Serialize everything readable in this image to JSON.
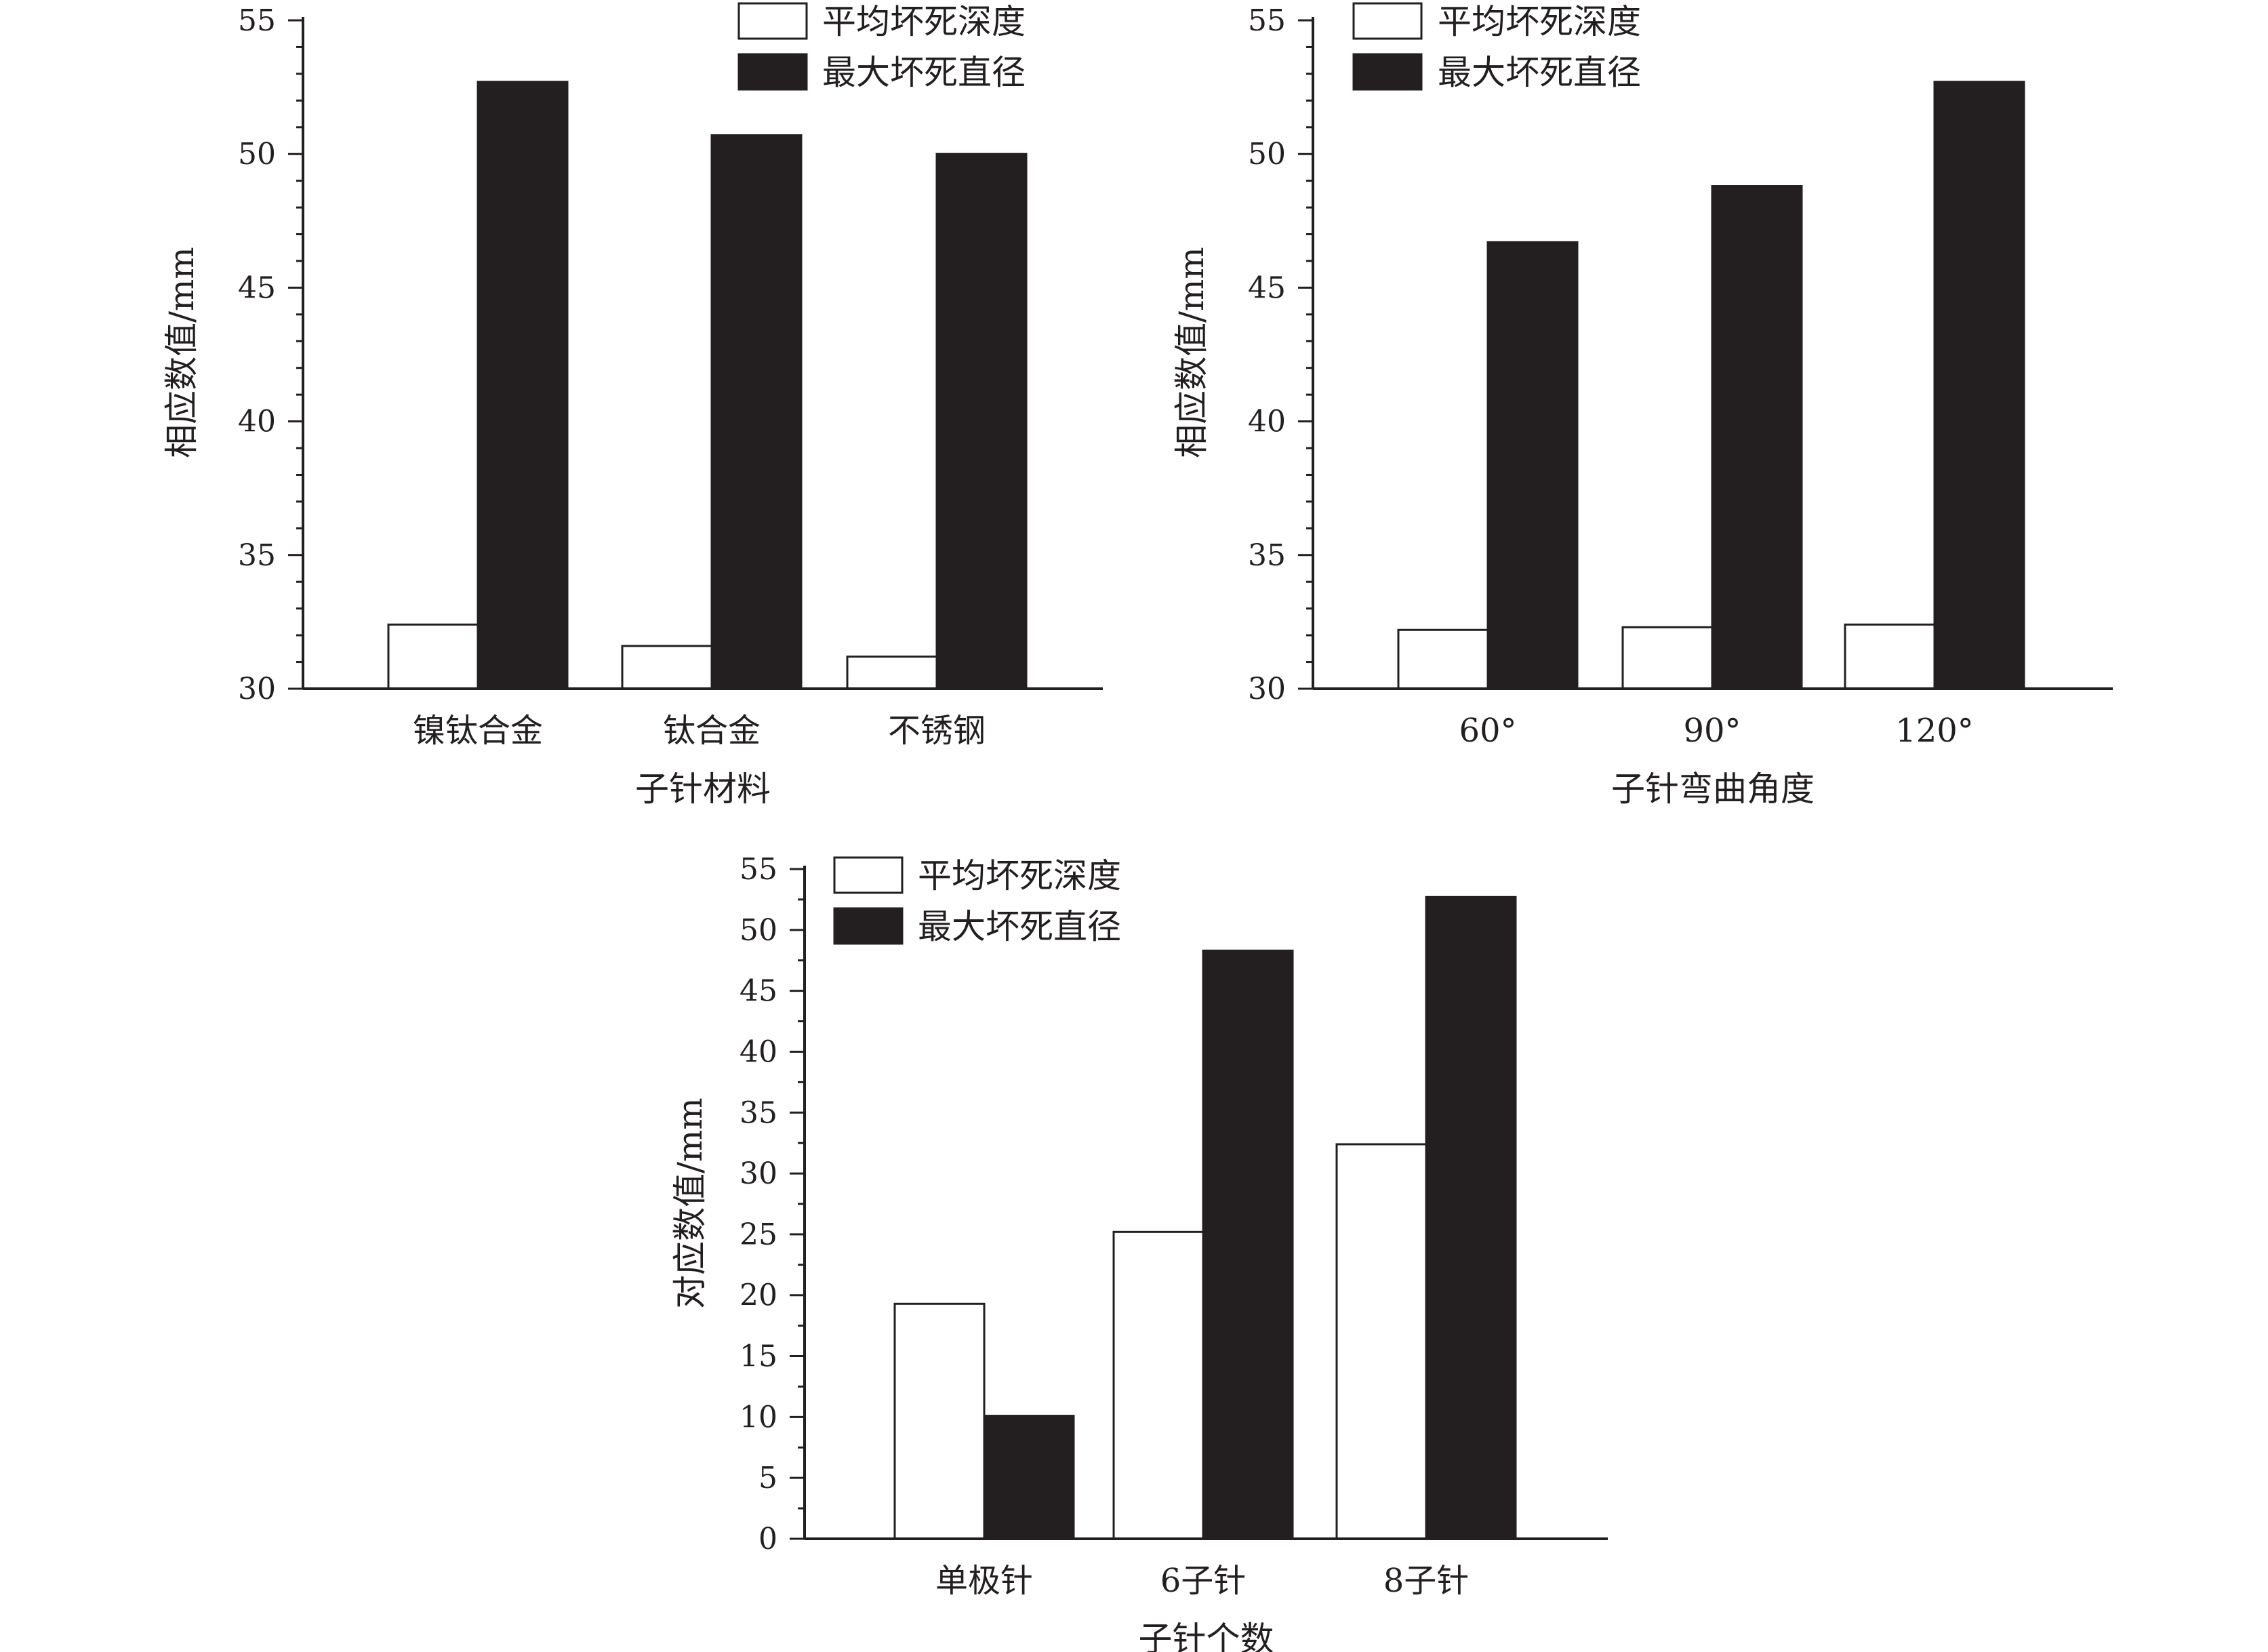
{
  "colors": {
    "bar_fill_series1": "#ffffff",
    "bar_fill_series2": "#231f20",
    "stroke": "#231f20"
  },
  "chart_data": [
    {
      "type": "bar",
      "categories": [
        "镍钛合金",
        "钛合金",
        "不锈钢"
      ],
      "series": [
        {
          "name": "平均坏死深度",
          "values": [
            32.4,
            31.6,
            31.2
          ]
        },
        {
          "name": "最大坏死直径",
          "values": [
            52.7,
            50.7,
            50.0
          ]
        }
      ],
      "xlabel": "子针材料",
      "ylabel": "相应数值/mm",
      "ylim": [
        30,
        55
      ],
      "yticks": [
        "30",
        "35",
        "40",
        "45",
        "50",
        "55"
      ],
      "legend": "top-center",
      "grid": false
    },
    {
      "type": "bar",
      "categories": [
        "60°",
        "90°",
        "120°"
      ],
      "series": [
        {
          "name": "平均坏死深度",
          "values": [
            32.2,
            32.3,
            32.4
          ]
        },
        {
          "name": "最大坏死直径",
          "values": [
            46.7,
            48.8,
            52.7
          ]
        }
      ],
      "xlabel": "子针弯曲角度",
      "ylabel": "相应数值/mm",
      "ylim": [
        30,
        55
      ],
      "yticks": [
        "30",
        "35",
        "40",
        "45",
        "50",
        "55"
      ],
      "legend": "top-center",
      "grid": false
    },
    {
      "type": "bar",
      "categories": [
        "单极针",
        "6子针",
        "8子针"
      ],
      "series": [
        {
          "name": "平均坏死深度",
          "values": [
            19.3,
            25.2,
            32.4
          ]
        },
        {
          "name": "最大坏死直径",
          "values": [
            10.1,
            48.3,
            52.7
          ]
        }
      ],
      "xlabel": "子针个数",
      "ylabel": "对应数值/mm",
      "ylim": [
        0,
        55
      ],
      "yticks": [
        "0",
        "5",
        "10",
        "15",
        "20",
        "25",
        "30",
        "35",
        "40",
        "45",
        "50",
        "55"
      ],
      "legend": "top-left",
      "grid": false
    }
  ]
}
